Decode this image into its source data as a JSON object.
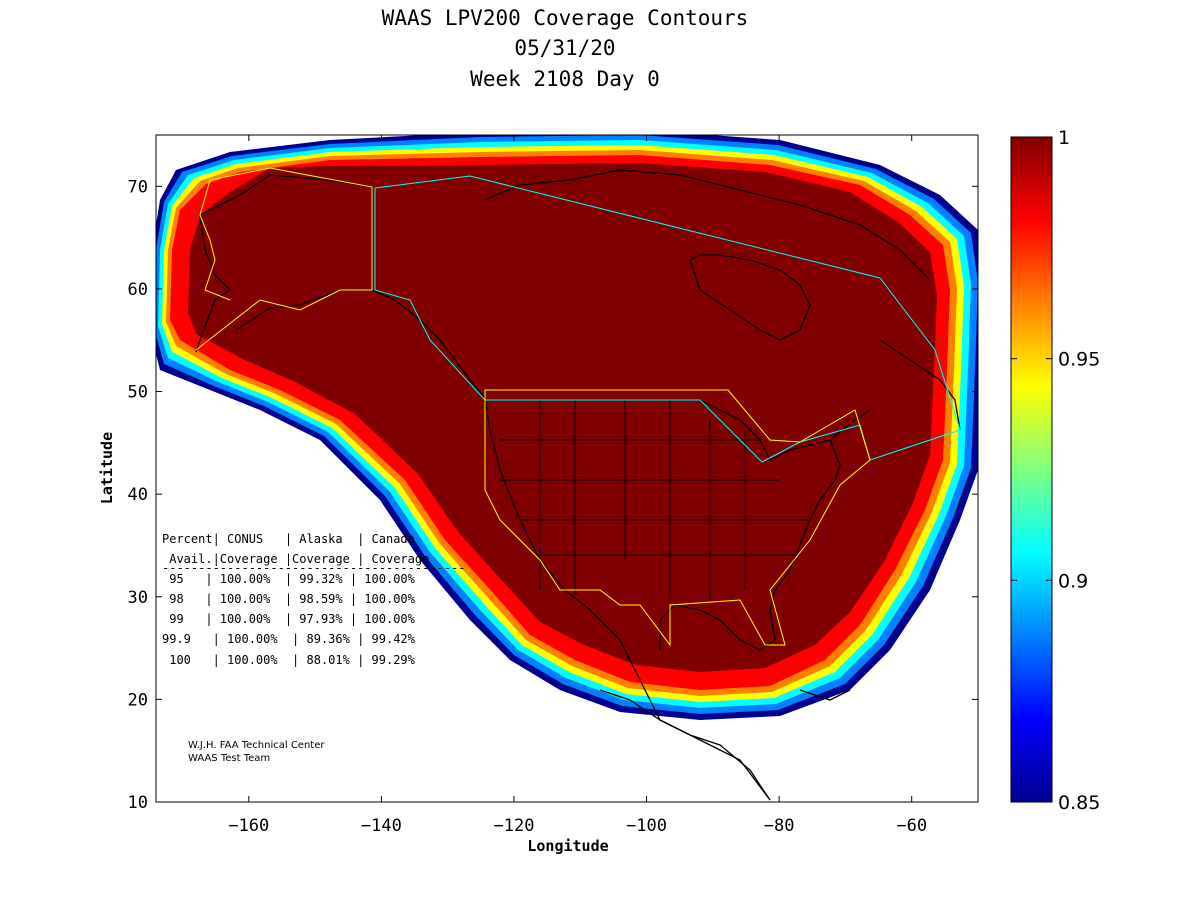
{
  "title": {
    "line1": "WAAS LPV200 Coverage Contours",
    "line2": "05/31/20",
    "line3": "Week 2108 Day 0"
  },
  "axes": {
    "xlabel": "Longitude",
    "ylabel": "Latitude",
    "xlim": [
      -174,
      -50
    ],
    "ylim": [
      10,
      75
    ],
    "xticks": [
      -160,
      -140,
      -120,
      -100,
      -80,
      -60
    ],
    "yticks": [
      10,
      20,
      30,
      40,
      50,
      60,
      70
    ]
  },
  "colorbar": {
    "min": 0.85,
    "max": 1,
    "ticks": [
      {
        "value": 1,
        "label": "1"
      },
      {
        "value": 0.95,
        "label": "0.95"
      },
      {
        "value": 0.9,
        "label": "0.9"
      },
      {
        "value": 0.85,
        "label": "0.85"
      }
    ],
    "colormap": [
      "#00008f",
      "#0000ff",
      "#0080ff",
      "#00ffff",
      "#80ff80",
      "#ffff00",
      "#ff8000",
      "#ff0000",
      "#800000"
    ]
  },
  "coverage_table": {
    "header1": "Percent| CONUS   | Alaska  | Canada",
    "header2": " Avail.|Coverage |Coverage | Coverage",
    "separator": "------------------------------------------",
    "rows": [
      " 95   | 100.00%  | 99.32% | 100.00%",
      " 98   | 100.00%  | 98.59% | 100.00%",
      " 99   | 100.00%  | 97.93% | 100.00%",
      "99.9   | 100.00%  | 89.36% | 99.42%",
      " 100   | 100.00%  | 88.01% | 99.29%"
    ]
  },
  "credit": {
    "line1": "W.J.H. FAA Technical Center",
    "line2": "WAAS Test Team"
  },
  "chart_data": {
    "type": "heatmap",
    "title": "WAAS LPV200 Coverage Contours",
    "subtitle": [
      "05/31/20",
      "Week 2108 Day 0"
    ],
    "xlabel": "Longitude",
    "ylabel": "Latitude",
    "xlim": [
      -174,
      -50
    ],
    "ylim": [
      10,
      75
    ],
    "colorbar_range": [
      0.85,
      1
    ],
    "table": {
      "columns": [
        "Percent Avail.",
        "CONUS Coverage",
        "Alaska Coverage",
        "Canada Coverage"
      ],
      "rows": [
        [
          "95",
          "100.00%",
          "99.32%",
          "100.00%"
        ],
        [
          "98",
          "100.00%",
          "98.59%",
          "100.00%"
        ],
        [
          "99",
          "100.00%",
          "97.93%",
          "100.00%"
        ],
        [
          "99.9",
          "100.00%",
          "89.36%",
          "99.42%"
        ],
        [
          "100",
          "100.00%",
          "88.01%",
          "99.29%"
        ]
      ]
    }
  }
}
